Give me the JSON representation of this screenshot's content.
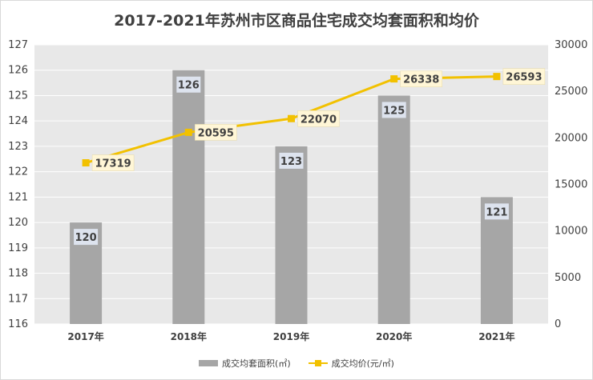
{
  "chart_data": {
    "type": "bar",
    "title": "2017-2021年苏州市区商品住宅成交均套面积和均价",
    "categories": [
      "2017年",
      "2018年",
      "2019年",
      "2020年",
      "2021年"
    ],
    "series": [
      {
        "name": "成交均套面积(㎡)",
        "type": "bar",
        "axis": "left",
        "values": [
          120,
          126,
          123,
          125,
          121
        ]
      },
      {
        "name": "成交均价(元/㎡)",
        "type": "line",
        "axis": "right",
        "values": [
          17319,
          20595,
          22070,
          26338,
          26593
        ]
      }
    ],
    "y_left": {
      "min": 116,
      "max": 127,
      "ticks": [
        116,
        117,
        118,
        119,
        120,
        121,
        122,
        123,
        124,
        125,
        126,
        127
      ]
    },
    "y_right": {
      "min": 0,
      "max": 30000,
      "ticks": [
        0,
        5000,
        10000,
        15000,
        20000,
        25000,
        30000
      ]
    },
    "bar_labels": [
      "120",
      "126",
      "123",
      "125",
      "121"
    ],
    "line_labels": [
      "17319",
      "20595",
      "22070",
      "26338",
      "26593"
    ],
    "legend_position": "bottom",
    "grid": true,
    "colors": {
      "bar": "#a6a6a6",
      "line": "#f2c100",
      "plot_bg": "#e8e8e8",
      "grid": "#ffffff",
      "bar_label_bg": "#dde3ee",
      "line_label_bg": "#fff6d6"
    }
  }
}
